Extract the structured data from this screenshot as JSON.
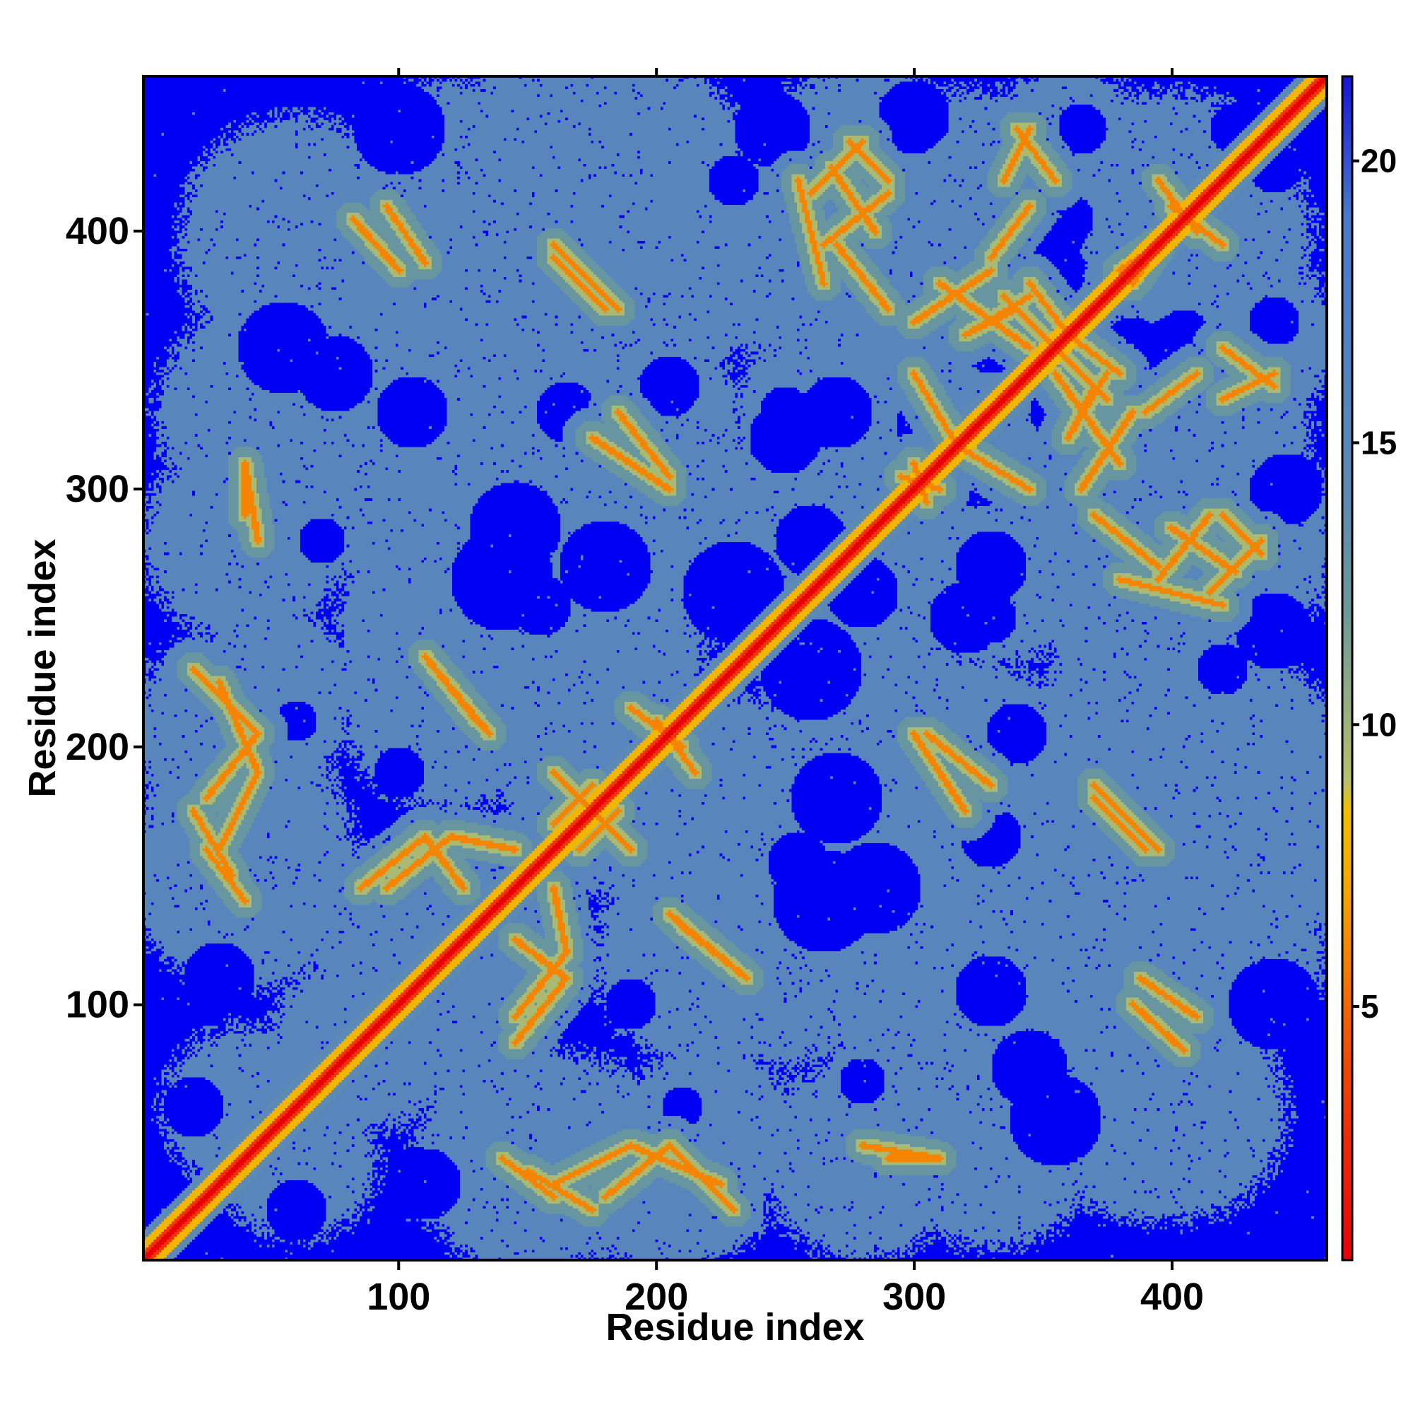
{
  "chart_data": {
    "type": "heatmap",
    "title": "",
    "xlabel": "Residue index",
    "ylabel": "Residue index",
    "xlim": [
      1,
      460
    ],
    "ylim": [
      1,
      460
    ],
    "x_ticks": [
      100,
      200,
      300,
      400
    ],
    "x_tick_labels": [
      "100",
      "200",
      "300",
      "400"
    ],
    "y_ticks": [
      100,
      200,
      300,
      400
    ],
    "y_tick_labels": [
      "100",
      "200",
      "300",
      "400"
    ],
    "colorbar": {
      "range": [
        0.5,
        21.5
      ],
      "ticks": [
        5,
        10,
        15,
        20
      ],
      "tick_labels": [
        "5",
        "10",
        "15",
        "20"
      ],
      "stops": [
        {
          "value": 0.5,
          "color": "#e8000b"
        },
        {
          "value": 4,
          "color": "#f04a00"
        },
        {
          "value": 7,
          "color": "#f7a300"
        },
        {
          "value": 8.5,
          "color": "#f0c000"
        },
        {
          "value": 9,
          "color": "#b8c06a"
        },
        {
          "value": 12,
          "color": "#6a9a9a"
        },
        {
          "value": 14,
          "color": "#5d8ab5"
        },
        {
          "value": 19,
          "color": "#4a7acc"
        },
        {
          "value": 21.5,
          "color": "#1515d8"
        }
      ]
    },
    "background_value": 21,
    "description_values": "symmetric residue-residue distance map; diagonal ~0-4, contact stripes ~5-9, interacting regions ~13-18, distant pairs >=20",
    "grid": false,
    "legend": "colorbar-right",
    "colors": {
      "far": "#0000f5",
      "mid": "#5a88b8",
      "near": "#e8c060",
      "contact": "#f05a00",
      "diagonal": "#e80000",
      "frame": "#000000"
    }
  }
}
